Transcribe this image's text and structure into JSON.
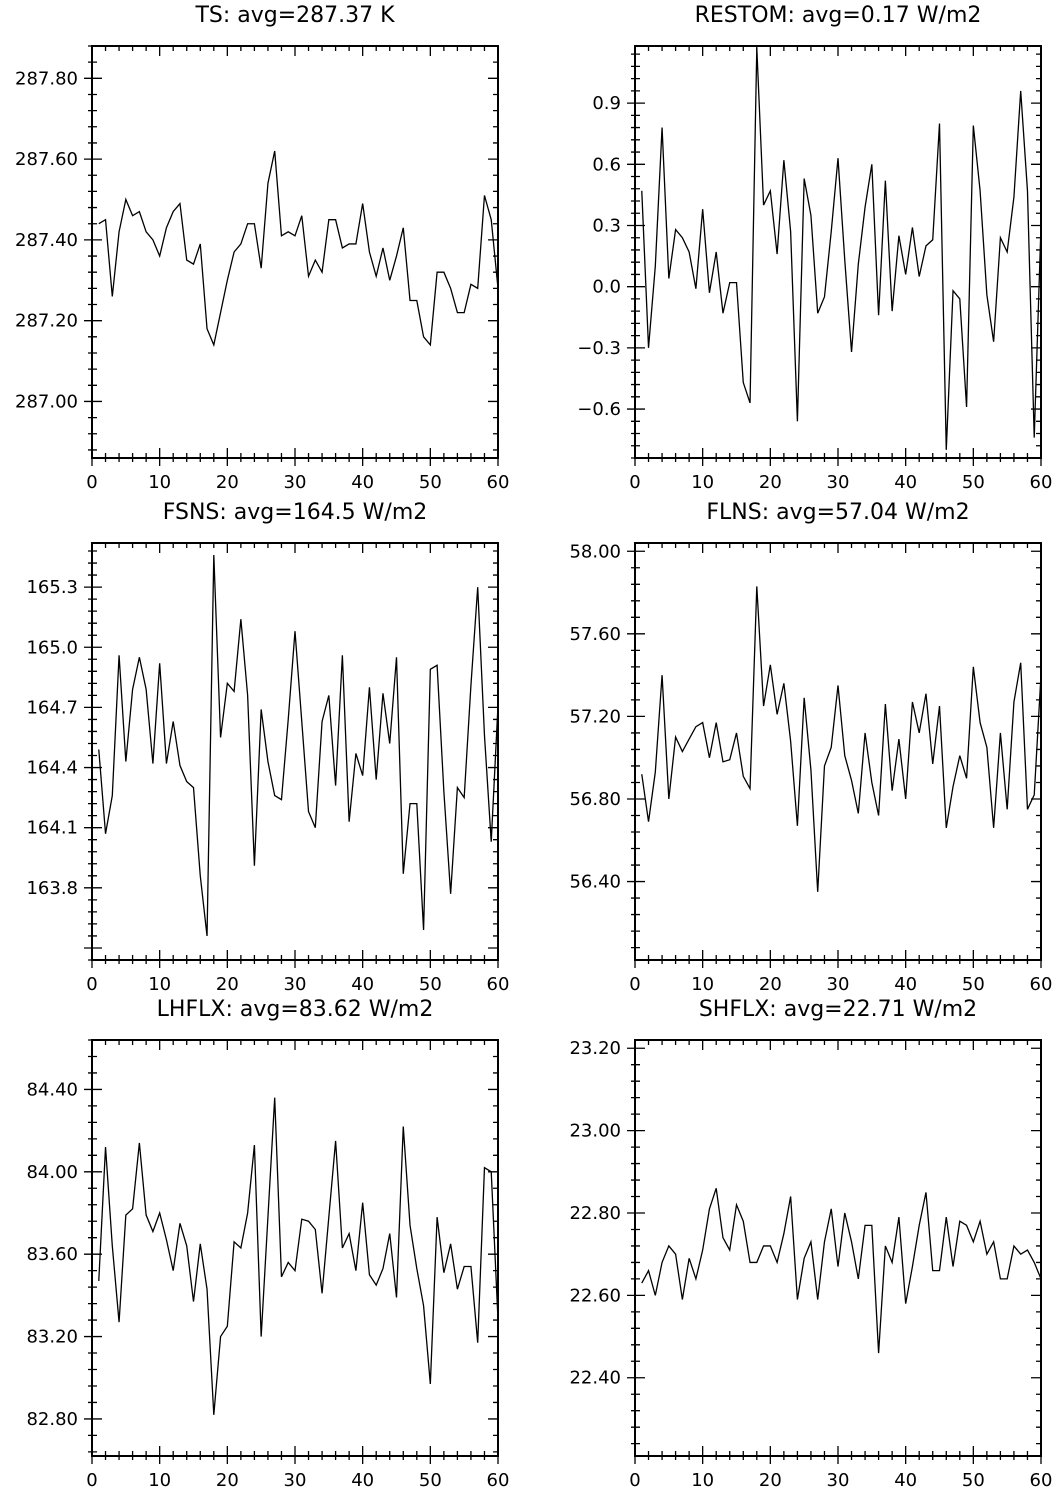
{
  "chart_data": [
    {
      "type": "line",
      "title": "TS: avg=287.37 K",
      "xlim": [
        0,
        60
      ],
      "ylim": [
        286.86,
        287.88
      ],
      "xticks": [
        0,
        10,
        20,
        30,
        40,
        50,
        60
      ],
      "xtick_labels": [
        "0",
        "10",
        "20",
        "30",
        "40",
        "50",
        "60"
      ],
      "yticks": [
        287.0,
        287.2,
        287.4,
        287.6,
        287.8
      ],
      "ytick_labels": [
        "287.00",
        "287.20",
        "287.40",
        "287.60",
        "287.80"
      ],
      "x_start": 1,
      "values": [
        287.44,
        287.45,
        287.26,
        287.42,
        287.5,
        287.46,
        287.47,
        287.42,
        287.4,
        287.36,
        287.43,
        287.47,
        287.49,
        287.35,
        287.34,
        287.39,
        287.18,
        287.14,
        287.22,
        287.3,
        287.37,
        287.39,
        287.44,
        287.44,
        287.33,
        287.54,
        287.62,
        287.41,
        287.42,
        287.41,
        287.46,
        287.31,
        287.35,
        287.32,
        287.45,
        287.45,
        287.38,
        287.39,
        287.39,
        287.49,
        287.37,
        287.31,
        287.38,
        287.3,
        287.36,
        287.43,
        287.25,
        287.25,
        287.16,
        287.14,
        287.32,
        287.32,
        287.28,
        287.22,
        287.22,
        287.29,
        287.28,
        287.51,
        287.45,
        287.28
      ]
    },
    {
      "type": "line",
      "title": "RESTOM: avg=0.17 W/m2",
      "xlim": [
        0,
        60
      ],
      "ylim": [
        -0.84,
        1.18
      ],
      "xticks": [
        0,
        10,
        20,
        30,
        40,
        50,
        60
      ],
      "xtick_labels": [
        "0",
        "10",
        "20",
        "30",
        "40",
        "50",
        "60"
      ],
      "yticks": [
        -0.6,
        -0.3,
        0.0,
        0.3,
        0.6,
        0.9
      ],
      "ytick_labels": [
        "−0.6",
        "−0.3",
        "0.0",
        "0.3",
        "0.6",
        "0.9"
      ],
      "x_start": 1,
      "values": [
        0.47,
        -0.3,
        0.1,
        0.78,
        0.04,
        0.28,
        0.24,
        0.17,
        -0.01,
        0.38,
        -0.03,
        0.17,
        -0.13,
        0.02,
        0.02,
        -0.47,
        -0.57,
        1.17,
        0.4,
        0.47,
        0.16,
        0.62,
        0.27,
        -0.66,
        0.53,
        0.35,
        -0.13,
        -0.05,
        0.27,
        0.63,
        0.13,
        -0.32,
        0.11,
        0.39,
        0.6,
        -0.14,
        0.52,
        -0.12,
        0.25,
        0.06,
        0.29,
        0.05,
        0.2,
        0.23,
        0.8,
        -0.8,
        -0.02,
        -0.06,
        -0.59,
        0.79,
        0.47,
        -0.04,
        -0.27,
        0.24,
        0.17,
        0.44,
        0.96,
        0.47,
        -0.74,
        0.3
      ]
    },
    {
      "type": "line",
      "title": "FSNS: avg=164.5 W/m2",
      "xlim": [
        0,
        60
      ],
      "ylim": [
        163.44,
        165.52
      ],
      "xticks": [
        0,
        10,
        20,
        30,
        40,
        50,
        60
      ],
      "xtick_labels": [
        "0",
        "10",
        "20",
        "30",
        "40",
        "50",
        "60"
      ],
      "yticks": [
        163.8,
        164.1,
        164.4,
        164.7,
        165.0,
        165.3
      ],
      "ytick_labels": [
        "163.8",
        "164.1",
        "164.4",
        "164.7",
        "165.0",
        "165.3"
      ],
      "x_start": 1,
      "values": [
        164.49,
        164.07,
        164.26,
        164.96,
        164.43,
        164.79,
        164.95,
        164.79,
        164.42,
        164.92,
        164.42,
        164.63,
        164.41,
        164.33,
        164.3,
        163.86,
        163.56,
        165.46,
        164.55,
        164.82,
        164.78,
        165.14,
        164.76,
        163.91,
        164.69,
        164.43,
        164.26,
        164.24,
        164.64,
        165.08,
        164.63,
        164.18,
        164.1,
        164.63,
        164.76,
        164.31,
        164.96,
        164.13,
        164.47,
        164.36,
        164.8,
        164.34,
        164.77,
        164.52,
        164.95,
        163.87,
        164.22,
        164.22,
        163.59,
        164.89,
        164.91,
        164.28,
        163.77,
        164.3,
        164.25,
        164.81,
        165.3,
        164.56,
        164.03,
        164.71
      ]
    },
    {
      "type": "line",
      "title": "FLNS: avg=57.04 W/m2",
      "xlim": [
        0,
        60
      ],
      "ylim": [
        56.02,
        58.04
      ],
      "xticks": [
        0,
        10,
        20,
        30,
        40,
        50,
        60
      ],
      "xtick_labels": [
        "0",
        "10",
        "20",
        "30",
        "40",
        "50",
        "60"
      ],
      "yticks": [
        56.4,
        56.8,
        57.2,
        57.6,
        58.0
      ],
      "ytick_labels": [
        "56.40",
        "56.80",
        "57.20",
        "57.60",
        "58.00"
      ],
      "x_start": 1,
      "values": [
        56.92,
        56.69,
        56.93,
        57.4,
        56.8,
        57.1,
        57.03,
        57.09,
        57.15,
        57.17,
        57.0,
        57.17,
        56.98,
        56.99,
        57.12,
        56.91,
        56.85,
        57.83,
        57.25,
        57.45,
        57.21,
        57.36,
        57.08,
        56.67,
        57.29,
        56.94,
        56.35,
        56.96,
        57.05,
        57.35,
        57.01,
        56.89,
        56.73,
        57.12,
        56.88,
        56.72,
        57.26,
        56.84,
        57.09,
        56.8,
        57.27,
        57.12,
        57.31,
        56.97,
        57.25,
        56.66,
        56.86,
        57.01,
        56.9,
        57.44,
        57.17,
        57.05,
        56.66,
        57.12,
        56.75,
        57.27,
        57.46,
        56.75,
        56.82,
        57.4
      ]
    },
    {
      "type": "line",
      "title": "LHFLX: avg=83.62 W/m2",
      "xlim": [
        0,
        60
      ],
      "ylim": [
        82.62,
        84.64
      ],
      "xticks": [
        0,
        10,
        20,
        30,
        40,
        50,
        60
      ],
      "xtick_labels": [
        "0",
        "10",
        "20",
        "30",
        "40",
        "50",
        "60"
      ],
      "yticks": [
        82.8,
        83.2,
        83.6,
        84.0,
        84.4
      ],
      "ytick_labels": [
        "82.80",
        "83.20",
        "83.60",
        "84.00",
        "84.40"
      ],
      "x_start": 1,
      "values": [
        83.47,
        84.12,
        83.64,
        83.27,
        83.79,
        83.82,
        84.14,
        83.79,
        83.71,
        83.8,
        83.67,
        83.52,
        83.75,
        83.64,
        83.37,
        83.65,
        83.43,
        82.82,
        83.2,
        83.25,
        83.66,
        83.63,
        83.8,
        84.13,
        83.2,
        83.78,
        84.36,
        83.49,
        83.56,
        83.52,
        83.77,
        83.76,
        83.72,
        83.41,
        83.78,
        84.15,
        83.63,
        83.7,
        83.52,
        83.85,
        83.5,
        83.45,
        83.53,
        83.7,
        83.39,
        84.22,
        83.74,
        83.53,
        83.35,
        82.97,
        83.78,
        83.51,
        83.65,
        83.43,
        83.54,
        83.54,
        83.17,
        84.02,
        84.0,
        83.28
      ]
    },
    {
      "type": "line",
      "title": "SHFLX: avg=22.71 W/m2",
      "xlim": [
        0,
        60
      ],
      "ylim": [
        22.21,
        23.22
      ],
      "xticks": [
        0,
        10,
        20,
        30,
        40,
        50,
        60
      ],
      "xtick_labels": [
        "0",
        "10",
        "20",
        "30",
        "40",
        "50",
        "60"
      ],
      "yticks": [
        22.4,
        22.6,
        22.8,
        23.0,
        23.2
      ],
      "ytick_labels": [
        "22.40",
        "22.60",
        "22.80",
        "23.00",
        "23.20"
      ],
      "x_start": 1,
      "values": [
        22.63,
        22.66,
        22.6,
        22.68,
        22.72,
        22.7,
        22.59,
        22.69,
        22.64,
        22.71,
        22.81,
        22.86,
        22.74,
        22.71,
        22.82,
        22.78,
        22.68,
        22.68,
        22.72,
        22.72,
        22.68,
        22.75,
        22.84,
        22.59,
        22.69,
        22.73,
        22.59,
        22.73,
        22.81,
        22.67,
        22.8,
        22.73,
        22.64,
        22.77,
        22.77,
        22.46,
        22.72,
        22.68,
        22.79,
        22.58,
        22.67,
        22.77,
        22.85,
        22.66,
        22.66,
        22.79,
        22.67,
        22.78,
        22.77,
        22.73,
        22.78,
        22.7,
        22.73,
        22.64,
        22.64,
        22.72,
        22.7,
        22.71,
        22.68,
        22.64
      ]
    }
  ]
}
